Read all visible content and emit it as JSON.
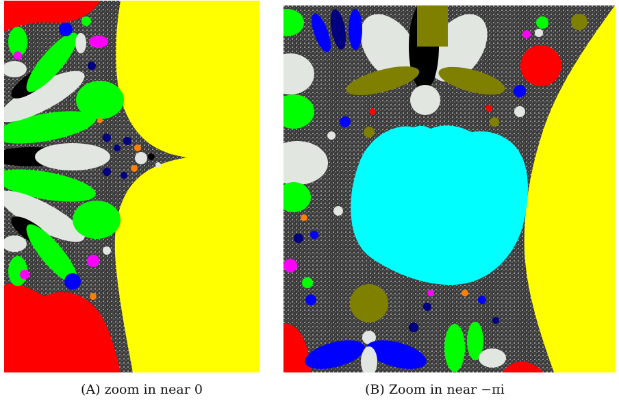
{
  "figure": {
    "panel_a": {
      "caption_tag": "(A)",
      "caption_text": "zoom in near 0"
    },
    "panel_b": {
      "caption_tag": "(B)",
      "caption_text": "Zoom in near −πi"
    }
  },
  "colors": {
    "yellow": "#ffff00",
    "red": "#ff0000",
    "green": "#00ff00",
    "cyan": "#00ffff",
    "light_gray": "#e2e6e1",
    "black": "#000000",
    "navy": "#000080",
    "blue": "#0000ff",
    "magenta": "#ff00ff",
    "olive": "#808000",
    "orange": "#ff7f00",
    "fractal_bg": "#505050"
  }
}
